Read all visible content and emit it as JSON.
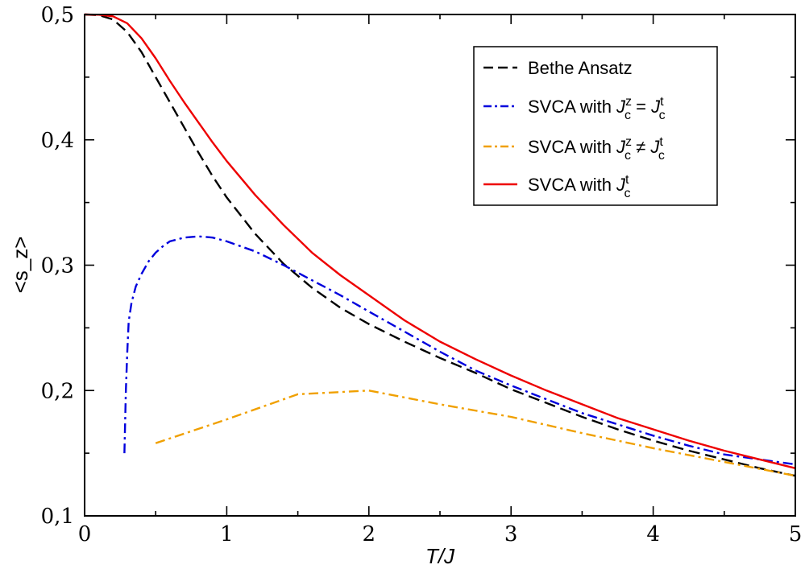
{
  "chart_data": {
    "type": "line",
    "xlabel": "T/J",
    "ylabel": "<s_z>",
    "xlim": [
      0,
      5
    ],
    "ylim": [
      0.1,
      0.5
    ],
    "x_ticks": [
      0,
      1,
      2,
      3,
      4,
      5
    ],
    "y_ticks": [
      0.1,
      0.2,
      0.3,
      0.4,
      0.5
    ],
    "x_tick_labels": [
      "0",
      "1",
      "2",
      "3",
      "4",
      "5"
    ],
    "y_tick_labels": [
      "0,1",
      "0,2",
      "0,3",
      "0,4",
      "0,5"
    ],
    "grid": false,
    "legend_position": "top-right",
    "series": [
      {
        "name": "Bethe Ansatz",
        "legend_parts": {
          "base": "Bethe Ansatz"
        },
        "color": "#000000",
        "dash": "dashed",
        "x": [
          0,
          0.1,
          0.2,
          0.3,
          0.4,
          0.5,
          0.6,
          0.7,
          0.8,
          0.9,
          1.0,
          1.2,
          1.4,
          1.6,
          1.8,
          2.0,
          2.25,
          2.5,
          2.75,
          3.0,
          3.25,
          3.5,
          3.75,
          4.0,
          4.25,
          4.5,
          4.75,
          5.0
        ],
        "y": [
          0.5,
          0.4995,
          0.496,
          0.486,
          0.47,
          0.45,
          0.43,
          0.41,
          0.39,
          0.371,
          0.354,
          0.325,
          0.301,
          0.282,
          0.266,
          0.253,
          0.239,
          0.226,
          0.214,
          0.201,
          0.19,
          0.179,
          0.169,
          0.16,
          0.152,
          0.145,
          0.138,
          0.132
        ]
      },
      {
        "name": "SVCA with Jcz = Jct",
        "legend_parts": {
          "base": "SVCA  with ",
          "sup1": "z",
          "op": "=",
          "sup2": "t"
        },
        "color": "#0000dd",
        "dash": "dashdot",
        "x": [
          0.28,
          0.29,
          0.3,
          0.31,
          0.33,
          0.36,
          0.4,
          0.45,
          0.5,
          0.55,
          0.6,
          0.7,
          0.8,
          0.9,
          1.0,
          1.2,
          1.4,
          1.6,
          1.8,
          2.0,
          2.25,
          2.5,
          2.75,
          3.0,
          3.25,
          3.5,
          3.75,
          4.0,
          4.25,
          4.5,
          4.75,
          5.0
        ],
        "y": [
          0.15,
          0.2,
          0.23,
          0.255,
          0.27,
          0.283,
          0.293,
          0.303,
          0.31,
          0.315,
          0.319,
          0.322,
          0.323,
          0.322,
          0.319,
          0.311,
          0.3,
          0.288,
          0.276,
          0.263,
          0.247,
          0.231,
          0.216,
          0.204,
          0.193,
          0.182,
          0.173,
          0.164,
          0.156,
          0.149,
          0.145,
          0.141
        ]
      },
      {
        "name": "SVCA with Jcz ≠ Jct",
        "legend_parts": {
          "base": "SVCA  with ",
          "sup1": "z",
          "op": "≠",
          "sup2": "t"
        },
        "color": "#f0a000",
        "dash": "dashdot",
        "x": [
          0.5,
          1.0,
          1.5,
          2.0,
          2.5,
          3.0,
          3.5,
          4.0,
          4.5,
          5.0
        ],
        "y": [
          0.158,
          0.177,
          0.197,
          0.2,
          0.189,
          0.179,
          0.166,
          0.154,
          0.143,
          0.132
        ]
      },
      {
        "name": "SVCA with Jct",
        "legend_parts": {
          "base": "SVCA  with ",
          "sup2": "t"
        },
        "color": "#ee0000",
        "dash": "solid",
        "x": [
          0,
          0.1,
          0.2,
          0.3,
          0.4,
          0.5,
          0.6,
          0.7,
          0.8,
          0.9,
          1.0,
          1.2,
          1.4,
          1.6,
          1.8,
          2.0,
          2.25,
          2.5,
          2.75,
          3.0,
          3.25,
          3.5,
          3.75,
          4.0,
          4.25,
          4.5,
          4.75,
          5.0
        ],
        "y": [
          0.5,
          0.4998,
          0.4985,
          0.493,
          0.481,
          0.465,
          0.447,
          0.43,
          0.414,
          0.398,
          0.383,
          0.356,
          0.332,
          0.31,
          0.292,
          0.276,
          0.256,
          0.239,
          0.225,
          0.212,
          0.2,
          0.189,
          0.178,
          0.169,
          0.16,
          0.152,
          0.145,
          0.138
        ]
      }
    ]
  }
}
